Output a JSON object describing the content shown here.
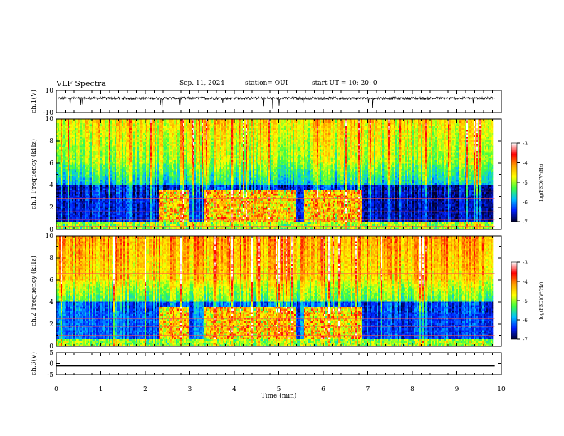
{
  "header": {
    "title": "VLF Spectra",
    "date": "Sep. 11, 2024",
    "station": "station= OUI",
    "start": "start UT =  10: 20: 0"
  },
  "colorbar": {
    "label": "log(PSD)(V²/Hz)",
    "ticks": [
      "-3",
      "-4",
      "-5",
      "-6",
      "-7"
    ],
    "colors": [
      "#ffffff",
      "#ff0000",
      "#ffa000",
      "#ffff00",
      "#40ff40",
      "#00c0ff",
      "#0020ff",
      "#000030"
    ]
  },
  "chart_data": [
    {
      "type": "line",
      "panel": "ch1-waveform",
      "ylabel": "ch.1(V)",
      "ylim": [
        -10,
        10
      ],
      "yticks": [
        "10",
        "-10"
      ],
      "x": [
        0,
        10
      ],
      "series": [
        {
          "values": [
            3,
            3
          ]
        }
      ]
    },
    {
      "type": "heatmap",
      "panel": "ch1-spectrogram",
      "ylabel": "ch.1 Frequency (kHz)",
      "ylim": [
        0,
        10
      ],
      "yticks": [
        "0",
        "2",
        "4",
        "6",
        "8",
        "10"
      ]
    },
    {
      "type": "heatmap",
      "panel": "ch2-spectrogram",
      "ylabel": "ch.2 Frequency (kHz)",
      "ylim": [
        0,
        10
      ],
      "yticks": [
        "0",
        "2",
        "4",
        "6",
        "8",
        "10"
      ]
    },
    {
      "type": "line",
      "panel": "ch3-waveform",
      "ylabel": "ch.3(V)",
      "ylim": [
        -5,
        5
      ],
      "yticks": [
        "5",
        "0",
        "-5"
      ],
      "x": [
        0,
        10
      ],
      "series": [
        {
          "values": [
            -1,
            -1
          ]
        }
      ]
    }
  ],
  "xaxis": {
    "label": "Time  (min)",
    "ticks": [
      "0",
      "1",
      "2",
      "3",
      "4",
      "5",
      "6",
      "7",
      "8",
      "9",
      "10"
    ],
    "xlim": [
      0,
      10
    ],
    "data_end": 9.85
  }
}
